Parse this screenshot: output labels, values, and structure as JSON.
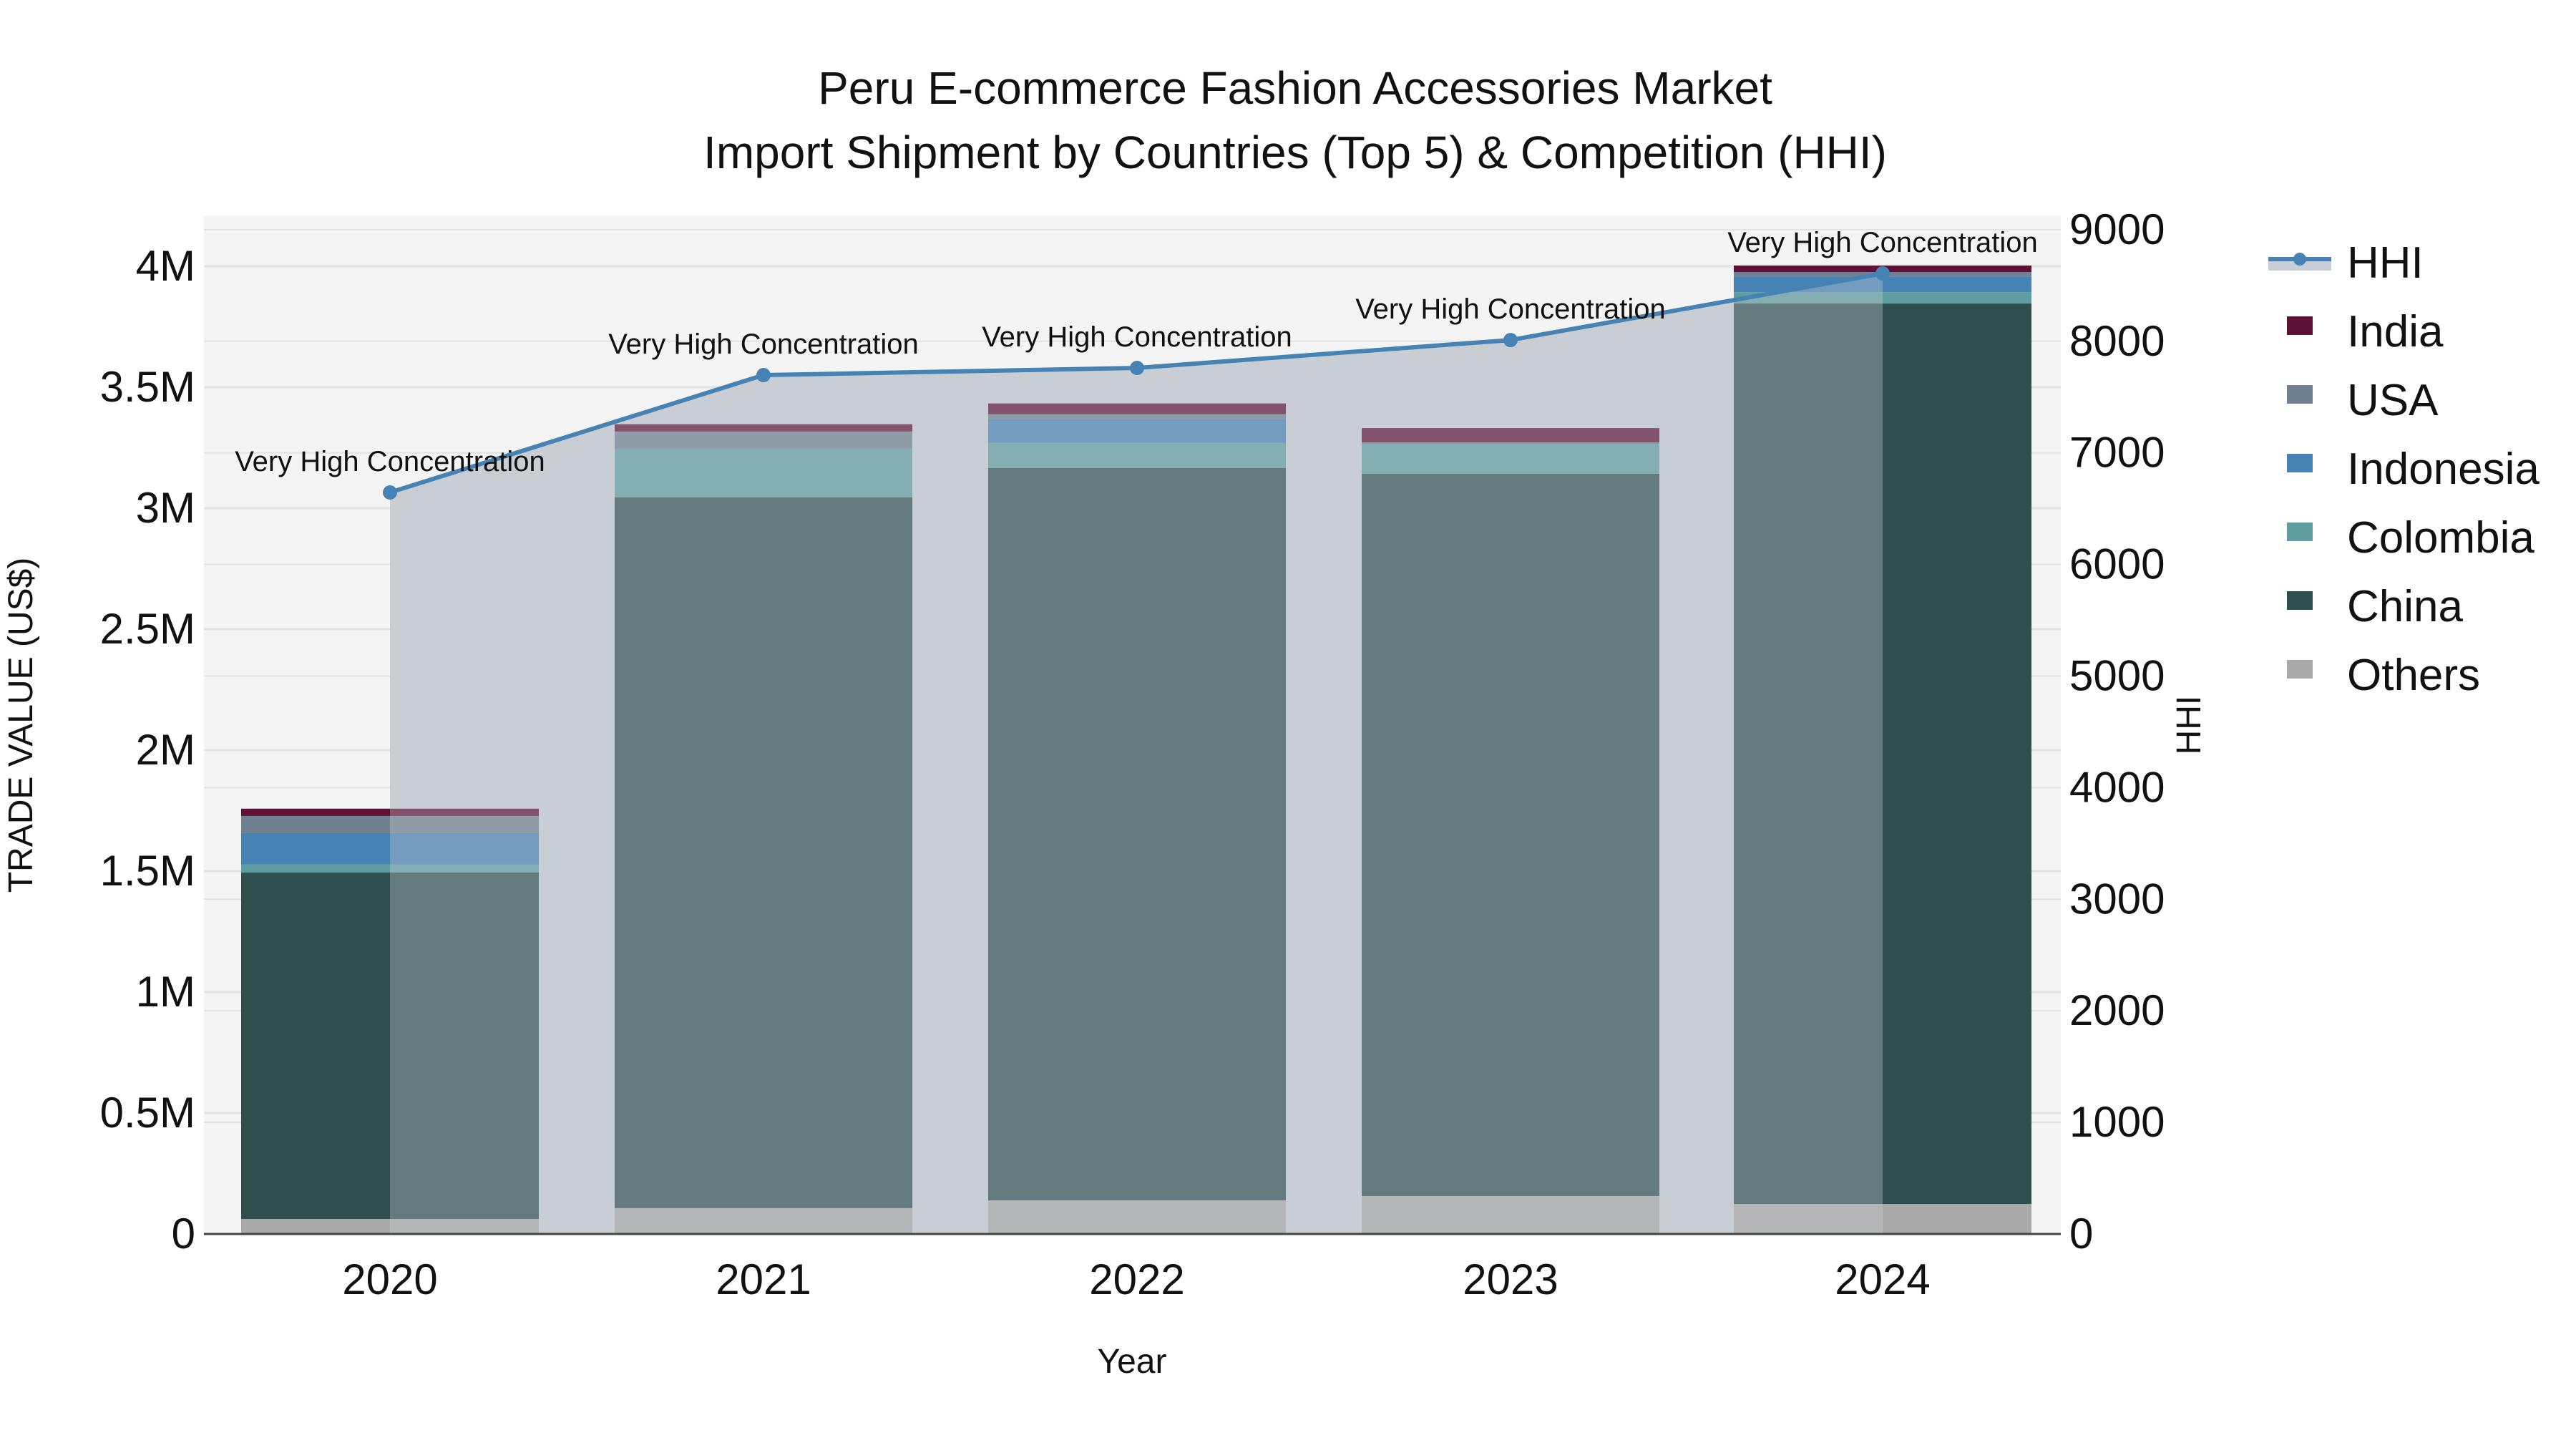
{
  "title": {
    "line1": "Peru E-commerce Fashion Accessories Market",
    "line2": "Import Shipment by Countries (Top 5) & Competition (HHI)"
  },
  "axes": {
    "x_label": "Year",
    "y_left_label": "TRADE VALUE (US$)",
    "y_right_label": "HHI",
    "y_left_ticks": [
      "0",
      "0.5M",
      "1M",
      "1.5M",
      "2M",
      "2.5M",
      "3M",
      "3.5M",
      "4M"
    ],
    "y_right_ticks": [
      "0",
      "1000",
      "2000",
      "3000",
      "4000",
      "5000",
      "6000",
      "7000",
      "8000",
      "9000"
    ]
  },
  "legend": [
    {
      "name": "HHI",
      "type": "line",
      "color": "#4682B4"
    },
    {
      "name": "India",
      "type": "bar",
      "color": "#5C1234"
    },
    {
      "name": "USA",
      "type": "bar",
      "color": "#708090"
    },
    {
      "name": "Indonesia",
      "type": "bar",
      "color": "#4682B4"
    },
    {
      "name": "Colombia",
      "type": "bar",
      "color": "#5F9EA0"
    },
    {
      "name": "China",
      "type": "bar",
      "color": "#2F4F4F"
    },
    {
      "name": "Others",
      "type": "bar",
      "color": "#A9A9A9"
    }
  ],
  "colors": {
    "plot_bg": "#F4F4F4",
    "hhi_fill": "#C9CDD5",
    "hhi_line": "#4682B4",
    "grid": "#E2E2E2",
    "axis_line": "#444444"
  },
  "annotations": [
    "Very High Concentration",
    "Very High Concentration",
    "Very High Concentration",
    "Very High Concentration",
    "Very High Concentration"
  ],
  "chart_data": {
    "type": "bar",
    "stacked": true,
    "title": "Peru E-commerce Fashion Accessories Market — Import Shipment by Countries (Top 5) & Competition (HHI)",
    "xlabel": "Year",
    "ylabel": "TRADE VALUE (US$)",
    "y2label": "HHI",
    "categories": [
      "2020",
      "2021",
      "2022",
      "2023",
      "2024"
    ],
    "ylim": [
      0,
      4200000
    ],
    "y2lim": [
      0,
      9200
    ],
    "series": [
      {
        "name": "Others",
        "values": [
          62000,
          107000,
          139000,
          157000,
          124000
        ]
      },
      {
        "name": "China",
        "values": [
          1432000,
          2938000,
          3027000,
          2985000,
          3722000
        ]
      },
      {
        "name": "Colombia",
        "values": [
          33000,
          201000,
          104000,
          124000,
          47000
        ]
      },
      {
        "name": "Indonesia",
        "values": [
          130000,
          0,
          98000,
          0,
          65000
        ]
      },
      {
        "name": "USA",
        "values": [
          71000,
          71000,
          21000,
          6000,
          18000
        ]
      },
      {
        "name": "India",
        "values": [
          30000,
          30000,
          44000,
          59000,
          27000
        ]
      }
    ],
    "line_series": {
      "name": "HHI",
      "axis": "right",
      "values": [
        6645,
        7697,
        7761,
        8011,
        8608
      ],
      "labels": [
        "Very High Concentration",
        "Very High Concentration",
        "Very High Concentration",
        "Very High Concentration",
        "Very High Concentration"
      ]
    },
    "legend_position": "right",
    "grid": true
  }
}
